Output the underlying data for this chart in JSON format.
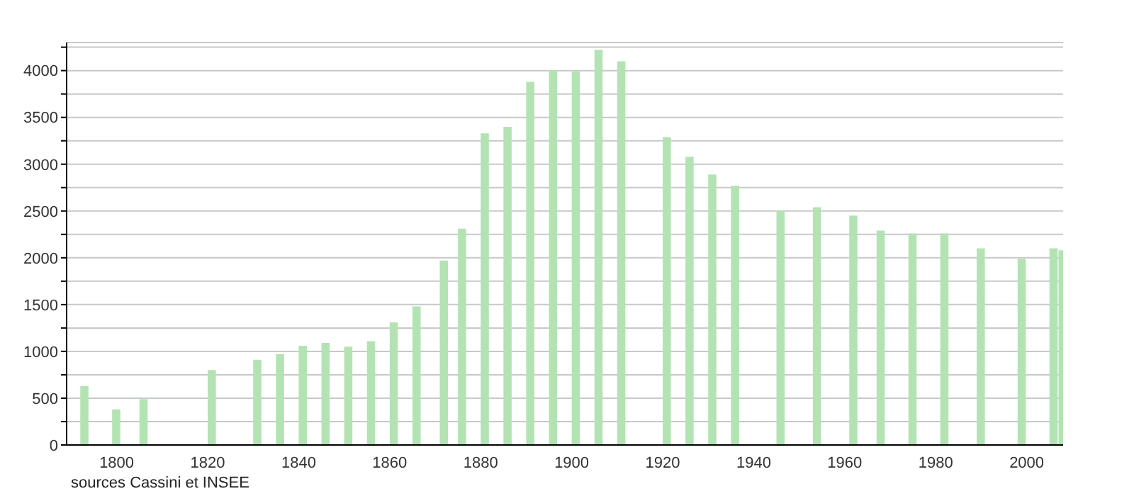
{
  "chart_data": {
    "type": "bar",
    "x": [
      1793,
      1800,
      1806,
      1821,
      1831,
      1836,
      1841,
      1846,
      1851,
      1856,
      1861,
      1866,
      1872,
      1876,
      1881,
      1886,
      1891,
      1896,
      1901,
      1906,
      1911,
      1921,
      1926,
      1931,
      1936,
      1946,
      1954,
      1962,
      1968,
      1975,
      1982,
      1990,
      1999,
      2006,
      2008
    ],
    "values": [
      630,
      380,
      490,
      800,
      910,
      970,
      1060,
      1090,
      1050,
      1110,
      1310,
      1480,
      1970,
      2310,
      3330,
      3400,
      3880,
      4000,
      3990,
      4220,
      4100,
      3290,
      3080,
      2890,
      2770,
      2500,
      2540,
      2450,
      2290,
      2260,
      2260,
      2100,
      1990,
      2100,
      2080
    ],
    "color": "#b3e3b3",
    "xlim": [
      1789,
      2008
    ],
    "xticks": [
      1800,
      1820,
      1840,
      1860,
      1880,
      1900,
      1920,
      1940,
      1960,
      1980,
      2000
    ],
    "ylim": [
      0,
      4300
    ],
    "yticks": [
      0,
      {
        "value": 250,
        "label": null
      },
      500,
      {
        "value": 750,
        "label": null
      },
      1000,
      {
        "value": 1250,
        "label": null
      },
      1500,
      {
        "value": 1750,
        "label": null
      },
      2000,
      {
        "value": 2250,
        "label": null
      },
      2500,
      {
        "value": 2750,
        "label": null
      },
      3000,
      {
        "value": 3250,
        "label": null
      },
      3500,
      {
        "value": 3750,
        "label": null
      },
      4000,
      {
        "value": 4250,
        "label": null
      }
    ],
    "grid": "y",
    "annotations": [
      "sources Cassini et INSEE"
    ]
  }
}
